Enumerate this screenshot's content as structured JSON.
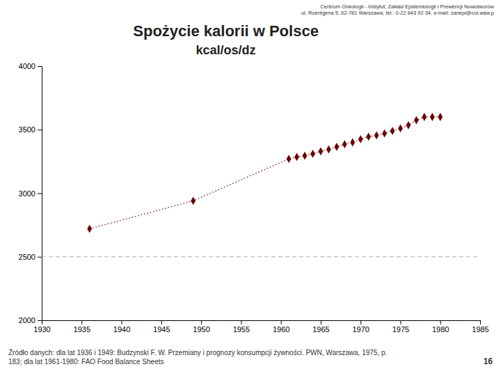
{
  "chart_data": {
    "type": "line",
    "title": "Spożycie kalorii w Polsce",
    "subtitle": "kcal/os/dz",
    "annotations": [
      "Centrum Onkologii - Instytut, Zakład Epidemiologii i Prewencji Nowotworów\nul. Roentgena 5, 02-781 Warszawa, tel.: 0-22 643 92 34, e-mail: zanepi@coi.waw.p",
      "Źródło danych: dla lat 1936 i 1949: Budzynski F. W. Przemiany i prognozy konsumpcji żywności. PWN, Warszawa, 1975, p.\n183; dla lat 1961-1980: FAO Food Balance Sheets",
      "16"
    ],
    "x": [
      1936,
      1949,
      1961,
      1962,
      1963,
      1964,
      1965,
      1966,
      1967,
      1968,
      1969,
      1970,
      1971,
      1972,
      1973,
      1974,
      1975,
      1976,
      1977,
      1978,
      1979,
      1980
    ],
    "values": [
      2720,
      2940,
      3270,
      3285,
      3295,
      3310,
      3330,
      3345,
      3365,
      3385,
      3400,
      3425,
      3445,
      3455,
      3470,
      3490,
      3510,
      3535,
      3575,
      3600,
      3600,
      3600
    ],
    "color": "#6b0000",
    "marker": "diamond",
    "line_style": "dotted",
    "reference_line": {
      "y": 2500,
      "color": "#b0b0b0",
      "line_style": "dashed"
    },
    "xlim": [
      1930,
      1985
    ],
    "ylim": [
      2000,
      4000
    ],
    "xticks": [
      1930,
      1935,
      1940,
      1945,
      1950,
      1955,
      1960,
      1965,
      1970,
      1975,
      1980,
      1985
    ],
    "yticks": [
      2000,
      2500,
      3000,
      3500,
      4000
    ]
  }
}
